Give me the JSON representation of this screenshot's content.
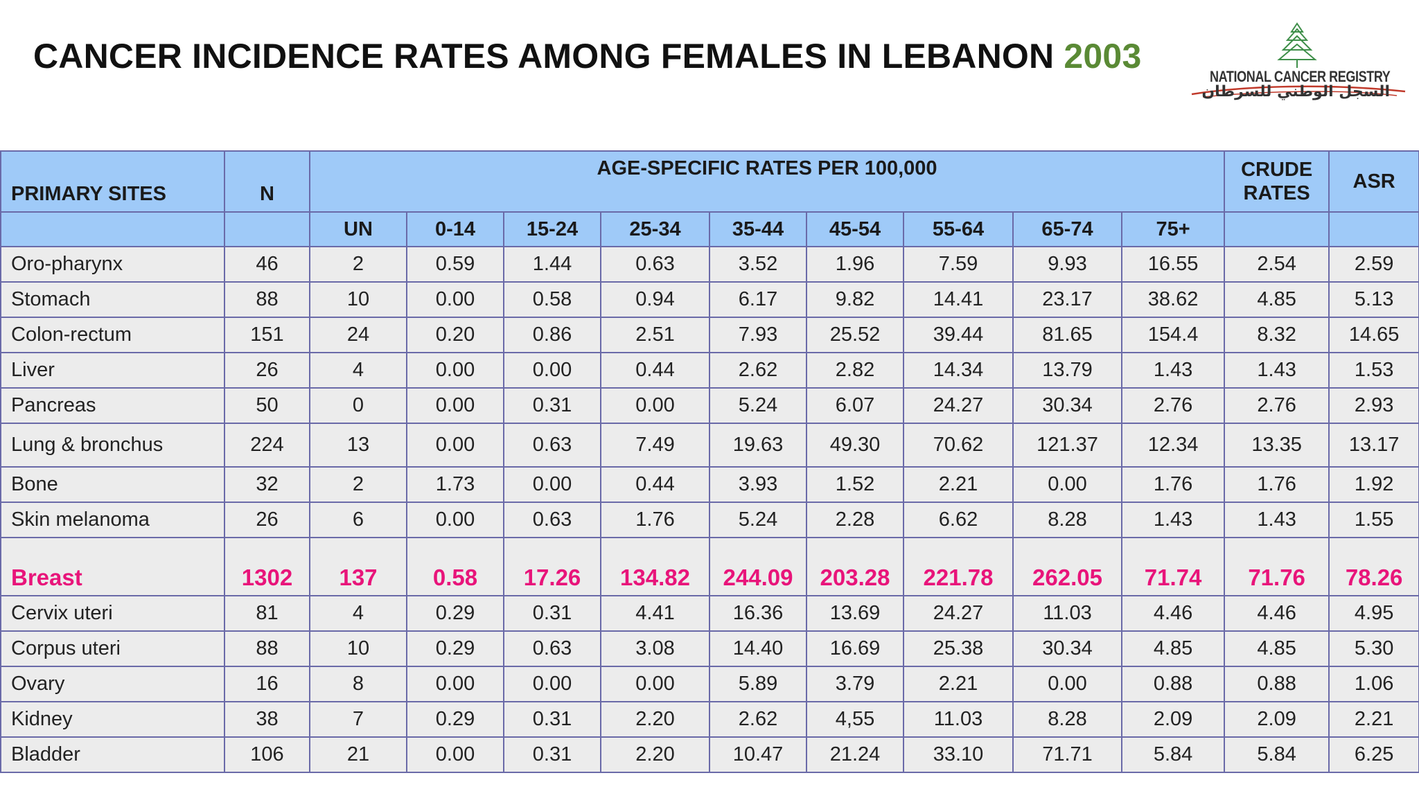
{
  "title": {
    "main": "CANCER INCIDENCE RATES AMONG FEMALES IN LEBANON ",
    "year": "2003"
  },
  "logo": {
    "english": "NATIONAL CANCER REGISTRY",
    "arabic": "السجل الوطني للسرطان",
    "icon": "cedar-tree-icon"
  },
  "table": {
    "header": {
      "primary_sites": "PRIMARY SITES",
      "n": "N",
      "age_group_title": "AGE-SPECIFIC RATES PER 100,000",
      "crude_rates_line1": "CRUDE",
      "crude_rates_line2": "RATES",
      "asr": "ASR",
      "age_groups": [
        "UN",
        "0-14",
        "15-24",
        "25-34",
        "35-44",
        "45-54",
        "55-64",
        "65-74",
        "75+"
      ]
    },
    "highlight_color": "#e8147a",
    "header_color": "#9fcaf8",
    "rows": [
      {
        "site": "Oro-pharynx",
        "n": "46",
        "un": "2",
        "a0_14": "0.59",
        "a15_24": "1.44",
        "a25_34": "0.63",
        "a35_44": "3.52",
        "a45_54": "1.96",
        "a55_64": "7.59",
        "a65_74": "9.93",
        "a75": "16.55",
        "crude": "2.54",
        "asr": "2.59"
      },
      {
        "site": "Stomach",
        "n": "88",
        "un": "10",
        "a0_14": "0.00",
        "a15_24": "0.58",
        "a25_34": "0.94",
        "a35_44": "6.17",
        "a45_54": "9.82",
        "a55_64": "14.41",
        "a65_74": "23.17",
        "a75": "38.62",
        "crude": "4.85",
        "asr": "5.13"
      },
      {
        "site": "Colon-rectum",
        "n": "151",
        "un": "24",
        "a0_14": "0.20",
        "a15_24": "0.86",
        "a25_34": "2.51",
        "a35_44": "7.93",
        "a45_54": "25.52",
        "a55_64": "39.44",
        "a65_74": "81.65",
        "a75": "154.4",
        "crude": "8.32",
        "asr": "14.65"
      },
      {
        "site": "Liver",
        "n": "26",
        "un": "4",
        "a0_14": "0.00",
        "a15_24": "0.00",
        "a25_34": "0.44",
        "a35_44": "2.62",
        "a45_54": "2.82",
        "a55_64": "14.34",
        "a65_74": "13.79",
        "a75": "1.43",
        "crude": "1.43",
        "asr": "1.53"
      },
      {
        "site": "Pancreas",
        "n": "50",
        "un": "0",
        "a0_14": "0.00",
        "a15_24": "0.31",
        "a25_34": "0.00",
        "a35_44": "5.24",
        "a45_54": "6.07",
        "a55_64": "24.27",
        "a65_74": "30.34",
        "a75": "2.76",
        "crude": "2.76",
        "asr": "2.93"
      },
      {
        "site": "Lung & bronchus",
        "n": "224",
        "un": "13",
        "a0_14": "0.00",
        "a15_24": "0.63",
        "a25_34": "7.49",
        "a35_44": "19.63",
        "a45_54": "49.30",
        "a55_64": "70.62",
        "a65_74": "121.37",
        "a75": "12.34",
        "crude": "13.35",
        "asr": "13.17"
      },
      {
        "site": "Bone",
        "n": "32",
        "un": "2",
        "a0_14": "1.73",
        "a15_24": "0.00",
        "a25_34": "0.44",
        "a35_44": "3.93",
        "a45_54": "1.52",
        "a55_64": "2.21",
        "a65_74": "0.00",
        "a75": "1.76",
        "crude": "1.76",
        "asr": "1.92"
      },
      {
        "site": "Skin melanoma",
        "n": "26",
        "un": "6",
        "a0_14": "0.00",
        "a15_24": "0.63",
        "a25_34": "1.76",
        "a35_44": "5.24",
        "a45_54": "2.28",
        "a55_64": "6.62",
        "a65_74": "8.28",
        "a75": "1.43",
        "crude": "1.43",
        "asr": "1.55"
      },
      {
        "site": "Breast",
        "highlight": true,
        "n": "1302",
        "un": "137",
        "a0_14": "0.58",
        "a15_24": "17.26",
        "a25_34": "134.82",
        "a35_44": "244.09",
        "a45_54": "203.28",
        "a55_64": "221.78",
        "a65_74": "262.05",
        "a75": "71.74",
        "crude": "71.76",
        "asr": "78.26"
      },
      {
        "site": "Cervix uteri",
        "n": "81",
        "un": "4",
        "a0_14": "0.29",
        "a15_24": "0.31",
        "a25_34": "4.41",
        "a35_44": "16.36",
        "a45_54": "13.69",
        "a55_64": "24.27",
        "a65_74": "11.03",
        "a75": "4.46",
        "crude": "4.46",
        "asr": "4.95"
      },
      {
        "site": "Corpus uteri",
        "n": "88",
        "un": "10",
        "a0_14": "0.29",
        "a15_24": "0.63",
        "a25_34": "3.08",
        "a35_44": "14.40",
        "a45_54": "16.69",
        "a55_64": "25.38",
        "a65_74": "30.34",
        "a75": "4.85",
        "crude": "4.85",
        "asr": "5.30"
      },
      {
        "site": "Ovary",
        "n": "16",
        "un": "8",
        "a0_14": "0.00",
        "a15_24": "0.00",
        "a25_34": "0.00",
        "a35_44": "5.89",
        "a45_54": "3.79",
        "a55_64": "2.21",
        "a65_74": "0.00",
        "a75": "0.88",
        "crude": "0.88",
        "asr": "1.06"
      },
      {
        "site": "Kidney",
        "n": "38",
        "un": "7",
        "a0_14": "0.29",
        "a15_24": "0.31",
        "a25_34": "2.20",
        "a35_44": "2.62",
        "a45_54": "4,55",
        "a55_64": "11.03",
        "a65_74": "8.28",
        "a75": "2.09",
        "crude": "2.09",
        "asr": "2.21"
      },
      {
        "site": "Bladder",
        "n": "106",
        "un": "21",
        "a0_14": "0.00",
        "a15_24": "0.31",
        "a25_34": "2.20",
        "a35_44": "10.47",
        "a45_54": "21.24",
        "a55_64": "33.10",
        "a65_74": "71.71",
        "a75": "5.84",
        "crude": "5.84",
        "asr": "6.25"
      }
    ]
  }
}
